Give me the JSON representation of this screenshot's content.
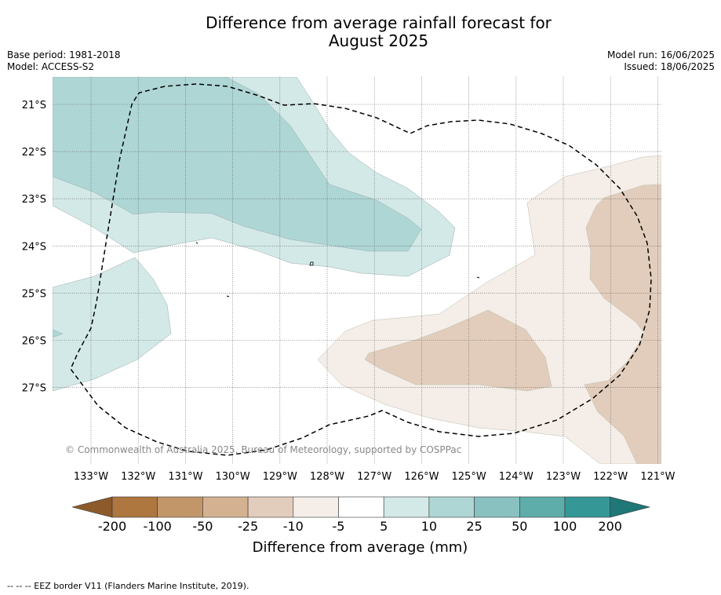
{
  "title": {
    "line1": "Difference from average rainfall forecast for",
    "line2": "August 2025"
  },
  "meta": {
    "base_period": "Base period: 1981-2018",
    "model": "Model: ACCESS-S2",
    "model_run": "Model run: 16/06/2025",
    "issued": "Issued: 18/06/2025"
  },
  "map": {
    "lat_labels": [
      "21°S",
      "22°S",
      "23°S",
      "24°S",
      "25°S",
      "26°S",
      "27°S"
    ],
    "lon_labels": [
      "133°W",
      "132°W",
      "131°W",
      "130°W",
      "129°W",
      "128°W",
      "127°W",
      "126°W",
      "125°W",
      "124°W",
      "123°W",
      "122°W",
      "121°W"
    ],
    "copyright": "© Commonwealth of Australia 2025, Bureau of Meteorology, supported by COSPPac"
  },
  "colorbar": {
    "title": "Difference from average (mm)",
    "labels": [
      "-200",
      "-100",
      "-50",
      "-25",
      "-10",
      "-5",
      "5",
      "10",
      "25",
      "50",
      "100",
      "200"
    ],
    "colors": [
      "#8c5a2b",
      "#ae7740",
      "#c29669",
      "#d4b291",
      "#e2cdbc",
      "#f4ede8",
      "#ffffff",
      "#d3e9e8",
      "#aed6d5",
      "#88c1c0",
      "#5eadab",
      "#359896",
      "#1f7777"
    ]
  },
  "footnote": "--  --  -- EEZ border V11 (Flanders Marine Institute, 2019)."
}
